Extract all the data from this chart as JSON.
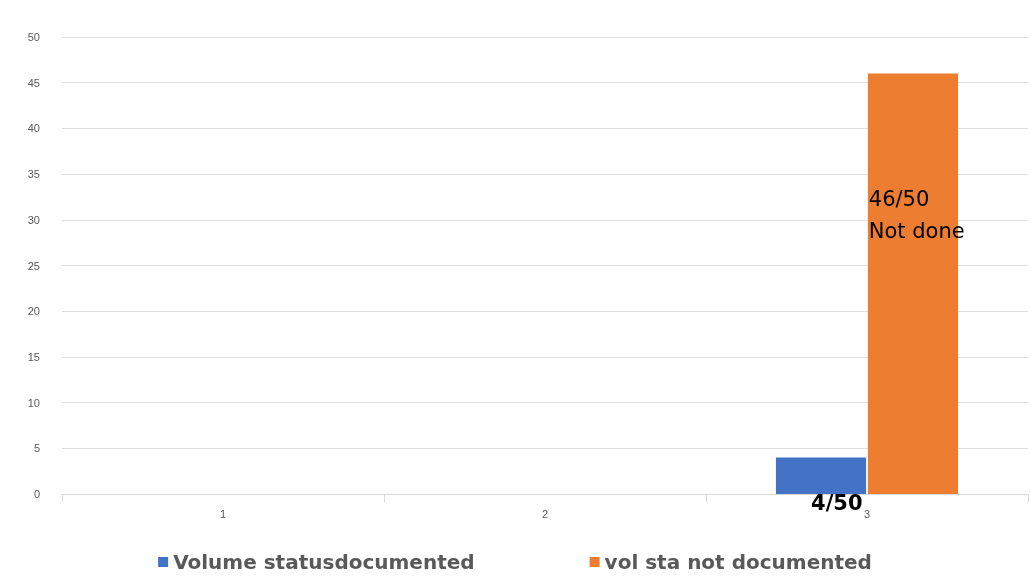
{
  "chart_data": {
    "type": "bar",
    "categories": [
      "1",
      "2",
      "3"
    ],
    "series": [
      {
        "name": "Volume statusdocumented",
        "color": "#4472c4",
        "values": [
          null,
          null,
          4
        ],
        "value_labels": [
          null,
          null,
          "4/50"
        ]
      },
      {
        "name": "vol sta not documented",
        "color": "#ed7d31",
        "values": [
          null,
          null,
          46
        ],
        "value_labels": [
          null,
          null,
          "46/50\nNot done"
        ]
      }
    ],
    "ylim": [
      0,
      50
    ],
    "yticks": [
      0,
      5,
      10,
      15,
      20,
      25,
      30,
      35,
      40,
      45,
      50
    ],
    "grid": "y",
    "legend": "bottom"
  }
}
